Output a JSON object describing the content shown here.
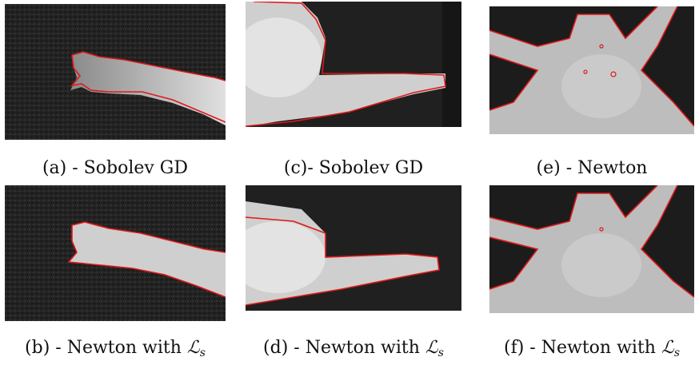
{
  "figure": {
    "panels": [
      {
        "id": "a",
        "caption_text": "(a) - Sobolev GD",
        "math": "",
        "sub": ""
      },
      {
        "id": "c",
        "caption_text": "(c)- Sobolev GD",
        "math": "",
        "sub": ""
      },
      {
        "id": "e",
        "caption_text": "(e) - Newton",
        "math": "",
        "sub": ""
      },
      {
        "id": "b",
        "caption_text": "(b) - Newton with ",
        "math": "ℒ",
        "sub": "s"
      },
      {
        "id": "d",
        "caption_text": "(d) - Newton with ",
        "math": "ℒ",
        "sub": "s"
      },
      {
        "id": "f",
        "caption_text": "(f) - Newton with ",
        "math": "ℒ",
        "sub": "s"
      }
    ],
    "contour_color": "#e01818",
    "background_color": "#1f1f1f",
    "foreground_color": "#d9d9d9"
  }
}
